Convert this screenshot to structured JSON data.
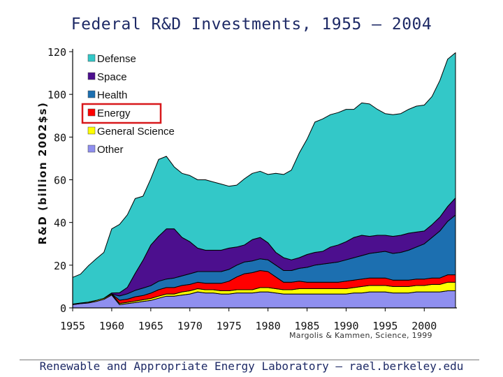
{
  "chart_data": {
    "type": "area",
    "stacked": true,
    "title": "Federal R&D Investments, 1955 – 2004",
    "ylabel": "R&D (billion 2002$s)",
    "xlabel": "",
    "ylim": [
      0,
      120
    ],
    "xlim": [
      1955,
      2004
    ],
    "yticks": [
      "0",
      "20",
      "40",
      "60",
      "80",
      "100",
      "120"
    ],
    "xticks": [
      "1955",
      "1960",
      "1965",
      "1970",
      "1975",
      "1980",
      "1985",
      "1990",
      "1995",
      "2000"
    ],
    "grid": false,
    "legend_position": "top-left",
    "x": [
      1955,
      1956,
      1957,
      1958,
      1959,
      1960,
      1961,
      1962,
      1963,
      1964,
      1965,
      1966,
      1967,
      1968,
      1969,
      1970,
      1971,
      1972,
      1973,
      1974,
      1975,
      1976,
      1977,
      1978,
      1979,
      1980,
      1981,
      1982,
      1983,
      1984,
      1985,
      1986,
      1987,
      1988,
      1989,
      1990,
      1991,
      1992,
      1993,
      1994,
      1995,
      1996,
      1997,
      1998,
      1999,
      2000,
      2001,
      2002,
      2003,
      2004
    ],
    "series": [
      {
        "name": "Other",
        "color": "#8f8fef",
        "values": [
          1.5,
          2,
          2.3,
          3,
          4,
          6,
          1.5,
          2,
          2.5,
          3,
          3.5,
          4.5,
          5.5,
          5.5,
          6,
          6.5,
          7.5,
          7,
          7,
          6.5,
          6.5,
          7,
          7,
          7,
          7.5,
          7.5,
          7,
          6.5,
          6.5,
          6.5,
          6.5,
          6.5,
          6.5,
          6.5,
          6.5,
          6.5,
          7,
          7,
          7.5,
          7.5,
          7.5,
          7,
          7,
          7,
          7.5,
          7.5,
          7.5,
          7.5,
          8,
          8
        ]
      },
      {
        "name": "General Science",
        "color": "#ffff00",
        "values": [
          0.3,
          0.3,
          0.4,
          0.5,
          0.5,
          0.5,
          0.6,
          0.6,
          0.7,
          0.8,
          0.9,
          1,
          1,
          1,
          1.5,
          1.5,
          1.5,
          1.5,
          1.5,
          1.5,
          1.5,
          1.5,
          1.5,
          1.5,
          2,
          2,
          2,
          2,
          2,
          2.5,
          2.5,
          2.5,
          2.5,
          2.5,
          2.5,
          2.5,
          2.5,
          3,
          3,
          3,
          3,
          3,
          3,
          3,
          3,
          3,
          3.5,
          3.5,
          4,
          4
        ]
      },
      {
        "name": "Energy",
        "color": "#ff0000",
        "values": [
          0,
          0,
          0,
          0,
          0,
          0,
          1.5,
          1.5,
          2,
          2,
          2.5,
          3,
          3,
          3,
          3,
          3,
          3,
          3,
          3,
          3.5,
          4.5,
          6,
          7.5,
          8,
          8,
          7.5,
          5.5,
          3.5,
          3.5,
          3.5,
          3,
          3,
          3,
          3,
          3,
          3.5,
          3.5,
          3.5,
          3.5,
          3.5,
          3.5,
          3,
          3,
          3,
          3,
          3,
          3,
          3,
          3.5,
          3.5
        ]
      },
      {
        "name": "Health",
        "color": "#1c6fb0",
        "values": [
          0,
          0,
          0,
          0,
          0,
          0,
          2,
          2.5,
          3,
          3.5,
          3.5,
          4,
          4,
          4.5,
          4.5,
          5,
          5,
          5.5,
          5.5,
          5.5,
          5.5,
          5.5,
          5.5,
          5.5,
          5.5,
          5.5,
          5.5,
          5.5,
          5.5,
          6,
          7,
          8,
          8.5,
          9,
          9.5,
          10,
          10.5,
          11,
          11.5,
          12,
          12.5,
          12.5,
          13,
          14,
          15,
          16.5,
          19,
          22,
          25,
          28
        ]
      },
      {
        "name": "Space",
        "color": "#4c0f8e",
        "values": [
          0,
          0,
          0,
          0,
          0,
          0.5,
          1.5,
          3,
          8,
          13,
          19,
          21,
          23.5,
          23,
          18,
          15,
          11,
          10,
          10,
          10,
          10,
          8.5,
          8,
          10,
          10,
          8,
          6,
          6,
          5,
          5,
          6,
          6,
          6,
          7.5,
          8,
          8.5,
          9.5,
          9.5,
          8,
          8,
          7.5,
          8,
          8,
          8,
          7,
          6,
          6,
          6.5,
          7,
          8
        ]
      },
      {
        "name": "Defense",
        "color": "#33c8c8",
        "values": [
          12.5,
          13.5,
          17,
          19.5,
          21.5,
          30,
          32,
          34,
          35,
          30,
          31,
          36,
          34,
          29,
          30,
          31,
          32,
          33,
          32,
          31,
          29,
          29,
          31,
          31,
          31,
          32,
          37,
          39,
          42,
          49,
          54,
          61,
          62,
          62,
          62,
          62,
          60,
          62,
          62,
          59,
          57,
          57,
          57,
          58,
          59,
          59,
          60,
          64,
          69,
          68
        ]
      }
    ]
  },
  "citation": "Margolis & Kammen, Science, 1999",
  "footer": "Renewable and Appropriate Energy Laboratory – rael.berkeley.edu",
  "highlight": {
    "series": "Energy",
    "color": "#d8181b"
  }
}
